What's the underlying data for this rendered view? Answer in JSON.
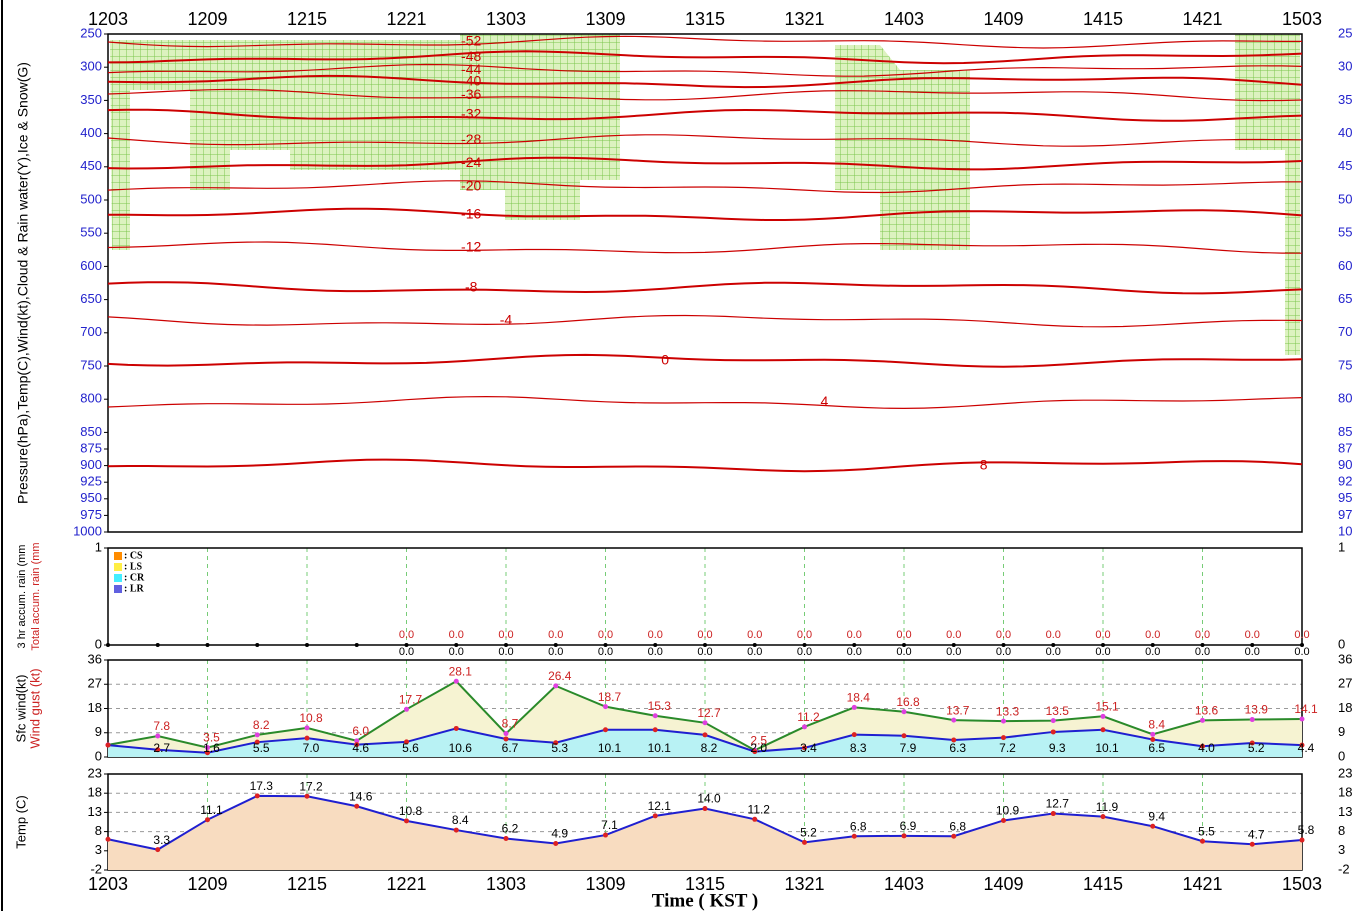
{
  "chart_data": [
    {
      "type": "cross_section",
      "ylabel": "Pressure(hPa),Temp(C),Wind(kt),Cloud & Rain water(Y),Ice & Snow(G)",
      "categories": [
        "1203",
        null,
        "1209",
        null,
        "1215",
        null,
        "1221",
        null,
        "1303",
        null,
        "1309",
        null,
        "1315",
        null,
        "1321",
        null,
        "1403",
        null,
        "1409",
        null,
        "1415",
        null,
        "1421",
        null,
        "1503"
      ],
      "ylim": [
        250,
        1000
      ],
      "yticks": [
        250,
        300,
        350,
        400,
        450,
        500,
        550,
        600,
        650,
        700,
        750,
        800,
        850,
        875,
        900,
        925,
        950,
        975,
        1000
      ],
      "contours": [
        {
          "level": -52,
          "pressure": 262,
          "color": "#cc0000"
        },
        {
          "level": -48,
          "pressure": 285,
          "color": "#cc0000"
        },
        {
          "level": -44,
          "pressure": 305,
          "color": "#cc0000"
        },
        {
          "level": -40,
          "pressure": 322,
          "color": "#cc0000"
        },
        {
          "level": -36,
          "pressure": 342,
          "color": "#cc0000"
        },
        {
          "level": -32,
          "pressure": 372,
          "color": "#cc0000"
        },
        {
          "level": -28,
          "pressure": 410,
          "color": "#cc0000"
        },
        {
          "level": -24,
          "pressure": 445,
          "color": "#cc0000"
        },
        {
          "level": -20,
          "pressure": 480,
          "color": "#cc0000"
        },
        {
          "level": -16,
          "pressure": 522,
          "color": "#cc0000"
        },
        {
          "level": -12,
          "pressure": 572,
          "color": "#cc0000"
        },
        {
          "level": -8,
          "pressure": 632,
          "color": "#cc0000"
        },
        {
          "level": -4,
          "pressure": 682,
          "color": "#cc0000"
        },
        {
          "level": 0,
          "pressure": 742,
          "color": "#cc0000"
        },
        {
          "level": 4,
          "pressure": 805,
          "color": "#cc0000"
        },
        {
          "level": 8,
          "pressure": 900,
          "color": "#cc0000"
        }
      ]
    },
    {
      "type": "rain",
      "ylabels": [
        "3 hr accum. rain (mm",
        "Total accum. rain (mm"
      ],
      "ylim": [
        0,
        1
      ],
      "yticks": [
        0,
        1
      ],
      "grid": true,
      "legend": [
        {
          "name": ": CS",
          "color": "#ff8c00"
        },
        {
          "name": ": LS",
          "color": "#ffee44"
        },
        {
          "name": ": CR",
          "color": "#44eeff"
        },
        {
          "name": ": LR",
          "color": "#6060e0"
        }
      ],
      "series": [
        {
          "color": "#cc2222",
          "values": [
            0,
            0,
            0,
            0,
            0,
            0,
            0,
            0,
            0,
            0,
            0,
            0,
            0,
            0,
            0,
            0,
            0,
            0,
            0,
            0,
            0,
            0,
            0,
            0,
            0
          ],
          "value_labels": [
            null,
            null,
            null,
            null,
            null,
            null,
            "0.0",
            "0.0",
            "0.0",
            "0.0",
            "0.0",
            "0.0",
            "0.0",
            "0.0",
            "0.0",
            "0.0",
            "0.0",
            "0.0",
            "0.0",
            "0.0",
            "0.0",
            "0.0",
            "0.0",
            "0.0",
            "0.0"
          ]
        },
        {
          "color": "#000000",
          "values": [
            0,
            0,
            0,
            0,
            0,
            0,
            0,
            0,
            0,
            0,
            0,
            0,
            0,
            0,
            0,
            0,
            0,
            0,
            0,
            0,
            0,
            0,
            0,
            0,
            0
          ],
          "value_labels": [
            null,
            null,
            null,
            null,
            null,
            null,
            "0.0",
            "0.0",
            "0.0",
            "0.0",
            "0.0",
            "0.0",
            "0.0",
            "0.0",
            "0.0",
            "0.0",
            "0.0",
            "0.0",
            "0.0",
            "0.0",
            "0.0",
            "0.0",
            "0.0",
            "0.0",
            "0.0"
          ]
        }
      ]
    },
    {
      "type": "area",
      "ylabels": [
        "Sfc wind(kt)",
        "Wind gust (kt)"
      ],
      "ylim": [
        0,
        36
      ],
      "yticks": [
        0,
        9,
        18,
        27,
        36
      ],
      "grid": true,
      "series": [
        {
          "color": "#2a8a2a",
          "fill": "#f6f3d2",
          "point_color": "#e040e0",
          "label_color": "#cc2222",
          "label_side": "above",
          "values": [
            4.5,
            7.8,
            3.5,
            8.2,
            10.8,
            6.0,
            17.7,
            28.1,
            8.7,
            26.4,
            18.7,
            15.3,
            12.7,
            2.5,
            11.2,
            18.4,
            16.8,
            13.7,
            13.3,
            13.5,
            15.1,
            8.4,
            13.6,
            13.9,
            14.1
          ],
          "value_labels": [
            null,
            "7.8",
            "3.5",
            "8.2",
            "10.8",
            "6.0",
            "17.7",
            "28.1",
            "8.7",
            "26.4",
            "18.7",
            "15.3",
            "12.7",
            "2.5",
            "11.2",
            "18.4",
            "16.8",
            "13.7",
            "13.3",
            "13.5",
            "15.1",
            "8.4",
            "13.6",
            "13.9",
            "14.1"
          ]
        },
        {
          "color": "#1f1fd0",
          "fill": "#b8f2f4",
          "point_color": "#dd2222",
          "label_color": "#000000",
          "label_side": "bottom",
          "values": [
            4.4,
            2.7,
            1.6,
            5.5,
            7.0,
            4.6,
            5.6,
            10.6,
            6.7,
            5.3,
            10.1,
            10.1,
            8.2,
            2.0,
            3.4,
            8.3,
            7.9,
            6.3,
            7.2,
            9.3,
            10.1,
            6.5,
            4.0,
            5.2,
            4.4
          ],
          "value_labels": [
            null,
            "2.7",
            "1.6",
            "5.5",
            "7.0",
            "4.6",
            "5.6",
            "10.6",
            "6.7",
            "5.3",
            "10.1",
            "10.1",
            "8.2",
            "2.0",
            "3.4",
            "8.3",
            "7.9",
            "6.3",
            "7.2",
            "9.3",
            "10.1",
            "6.5",
            "4.0",
            "5.2",
            "4.4"
          ]
        }
      ]
    },
    {
      "type": "area",
      "ylabels": [
        "Temp (C)"
      ],
      "xlabel": "Time ( KST )",
      "categories": [
        "1203",
        null,
        "1209",
        null,
        "1215",
        null,
        "1221",
        null,
        "1303",
        null,
        "1309",
        null,
        "1315",
        null,
        "1321",
        null,
        "1403",
        null,
        "1409",
        null,
        "1415",
        null,
        "1421",
        null,
        "1503"
      ],
      "ylim": [
        -2,
        23
      ],
      "yticks": [
        -2,
        3,
        8,
        13,
        18,
        23
      ],
      "grid": true,
      "series": [
        {
          "color": "#1f1fd0",
          "fill": "#f8dcc0",
          "point_color": "#dd2222",
          "label_color": "#000000",
          "label_side": "above",
          "values": [
            6.0,
            3.3,
            11.1,
            17.3,
            17.2,
            14.6,
            10.8,
            8.4,
            6.2,
            4.9,
            7.1,
            12.1,
            14.0,
            11.2,
            5.2,
            6.8,
            6.9,
            6.8,
            10.9,
            12.7,
            11.9,
            9.4,
            5.5,
            4.7,
            5.8
          ],
          "value_labels": [
            null,
            "3.3",
            "11.1",
            "17.3",
            "17.2",
            "14.6",
            "10.8",
            "8.4",
            "6.2",
            "4.9",
            "7.1",
            "12.1",
            "14.0",
            "11.2",
            "5.2",
            "6.8",
            "6.9",
            "6.8",
            "10.9",
            "12.7",
            "11.9",
            "9.4",
            "5.5",
            "4.7",
            "5.8"
          ]
        }
      ]
    }
  ]
}
